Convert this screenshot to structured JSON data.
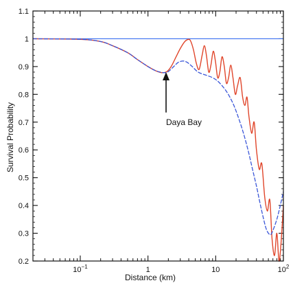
{
  "chart_data": {
    "type": "line",
    "title": "",
    "xlabel": "Distance (km)",
    "ylabel": "Survival Probability",
    "xscale": "log",
    "xlim": [
      0.02,
      100
    ],
    "ylim": [
      0.2,
      1.1
    ],
    "grid": false,
    "legend": "none",
    "x_ticks": [
      {
        "value": 0.1,
        "base": "10",
        "exp": "−1"
      },
      {
        "value": 1,
        "base": "1",
        "exp": ""
      },
      {
        "value": 10,
        "base": "10",
        "exp": ""
      },
      {
        "value": 100,
        "base": "10",
        "exp": "2"
      }
    ],
    "y_ticks": [
      {
        "value": 0.2,
        "label": "0.2"
      },
      {
        "value": 0.3,
        "label": "0.3"
      },
      {
        "value": 0.4,
        "label": "0.4"
      },
      {
        "value": 0.5,
        "label": "0.5"
      },
      {
        "value": 0.6,
        "label": "0.6"
      },
      {
        "value": 0.7,
        "label": "0.7"
      },
      {
        "value": 0.8,
        "label": "0.8"
      },
      {
        "value": 0.9,
        "label": "0.9"
      },
      {
        "value": 1.0,
        "label": "1"
      },
      {
        "value": 1.1,
        "label": "1.1"
      }
    ],
    "reference_line": {
      "y": 1.0,
      "color": "#3a6ff0"
    },
    "series": [
      {
        "color": "#e0452a",
        "x": [
          0.02,
          0.1,
          0.2,
          0.3,
          0.5,
          0.7,
          1.0,
          1.3,
          1.6,
          1.9,
          2.2,
          2.6,
          3.0,
          3.5,
          4.0,
          4.3,
          4.7,
          5.2,
          5.7,
          6.3,
          6.8,
          7.3,
          7.9,
          8.5,
          9.2,
          9.9,
          10.7,
          11.5,
          12.4,
          13.4,
          14.4,
          15.5,
          16.7,
          18.0,
          19.5,
          21.0,
          23.0,
          25.0,
          27.0,
          29.0,
          31.0,
          34.0,
          37.0,
          40.0,
          44.0,
          48.0,
          53.0,
          58.0,
          63.0,
          68.0,
          74.0,
          80.0,
          86.0,
          92.0,
          100.0
        ],
        "y": [
          1.0,
          0.998,
          0.99,
          0.975,
          0.95,
          0.925,
          0.9,
          0.885,
          0.878,
          0.882,
          0.9,
          0.935,
          0.965,
          0.99,
          0.998,
          0.99,
          0.96,
          0.91,
          0.89,
          0.94,
          0.975,
          0.94,
          0.88,
          0.905,
          0.955,
          0.92,
          0.86,
          0.88,
          0.935,
          0.9,
          0.84,
          0.86,
          0.905,
          0.86,
          0.8,
          0.83,
          0.86,
          0.79,
          0.76,
          0.79,
          0.72,
          0.66,
          0.7,
          0.6,
          0.53,
          0.55,
          0.43,
          0.38,
          0.42,
          0.28,
          0.22,
          0.3,
          0.2,
          0.26,
          0.4
        ]
      },
      {
        "color": "#3a56d8",
        "x": [
          0.02,
          0.1,
          0.2,
          0.3,
          0.5,
          0.7,
          1.0,
          1.3,
          1.7,
          2.0,
          2.4,
          2.8,
          3.3,
          3.8,
          4.5,
          5.5,
          7.0,
          9.0,
          11.0,
          14.0,
          17.0,
          20.0,
          25.0,
          30.0,
          35.0,
          40.0,
          45.0,
          50.0,
          55.0,
          60.0,
          65.0,
          70.0,
          80.0,
          90.0,
          100.0
        ],
        "y": [
          1.0,
          0.998,
          0.99,
          0.975,
          0.95,
          0.925,
          0.9,
          0.885,
          0.878,
          0.882,
          0.9,
          0.915,
          0.92,
          0.915,
          0.9,
          0.88,
          0.87,
          0.86,
          0.845,
          0.815,
          0.78,
          0.74,
          0.67,
          0.6,
          0.53,
          0.47,
          0.41,
          0.36,
          0.32,
          0.3,
          0.295,
          0.31,
          0.35,
          0.4,
          0.45
        ]
      }
    ],
    "annotations": [
      {
        "text": "Daya Bay",
        "x": 1.85,
        "y": 0.7,
        "arrow_to": {
          "x": 1.85,
          "y": 0.885
        }
      }
    ]
  }
}
